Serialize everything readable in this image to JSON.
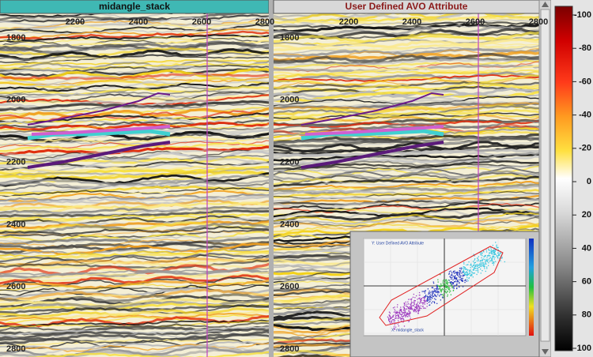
{
  "panels": [
    {
      "title": "midangle_stack",
      "x_ticks": [
        2200,
        2400,
        2600,
        2800
      ],
      "y_ticks": [
        1800,
        2000,
        2200,
        2400,
        2600,
        2800
      ]
    },
    {
      "title": "User Defined AVO Attribute",
      "x_ticks": [
        2200,
        2400,
        2600,
        2800
      ],
      "y_ticks": [
        1800,
        2000,
        2200,
        2400,
        2600,
        2800
      ]
    }
  ],
  "colorbar": {
    "ticks": [
      -100,
      -80,
      -60,
      -40,
      -20,
      0,
      20,
      40,
      60,
      80,
      100
    ]
  },
  "crossplot": {
    "y_label": "Y: User Defined AVO Attribute",
    "x_label": "X: midangle_stack"
  }
}
